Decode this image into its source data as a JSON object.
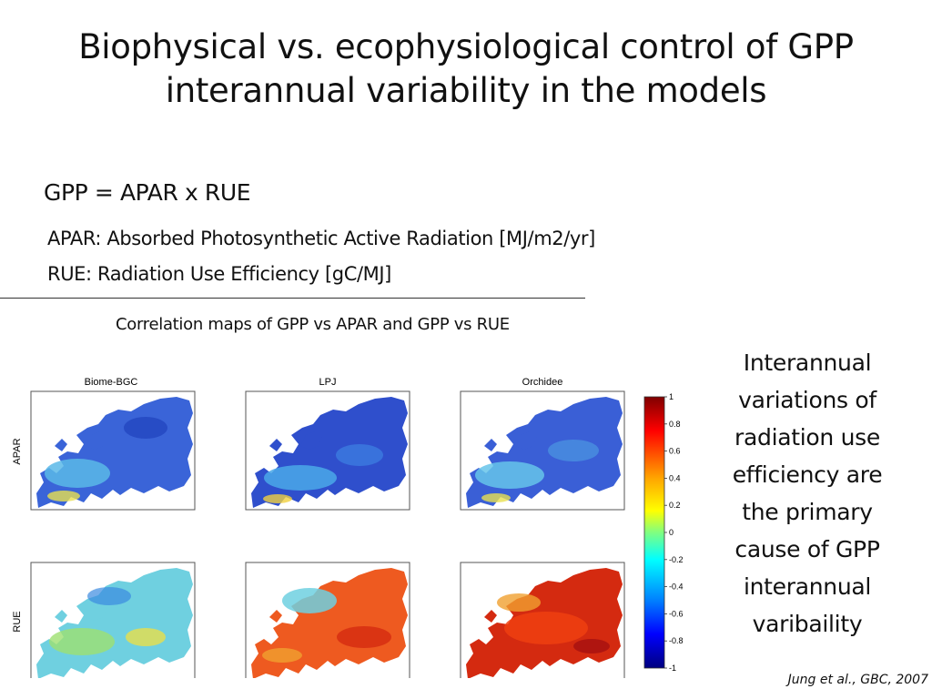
{
  "slide": {
    "title_line1": "Biophysical vs. ecophysiological control of GPP",
    "title_line2": "interannual variability in the models",
    "equation": "GPP = APAR x RUE",
    "apar_definition": "APAR: Absorbed Photosynthetic Active Radiation [MJ/m2/yr]",
    "rue_definition": "RUE: Radiation Use Efficiency [gC/MJ]",
    "caption": "Correlation maps of GPP vs APAR and GPP vs RUE",
    "conclusion": "Interannual variations of radiation use efficiency are the primary cause of GPP interannual varibaility",
    "citation": "Jung et al., GBC, 2007"
  },
  "figure": {
    "models": [
      "Biome-BGC",
      "LPJ",
      "Orchidee"
    ],
    "rows": [
      "APAR",
      "RUE"
    ],
    "colorbar": {
      "min": -1,
      "max": 1,
      "ticks": [
        "1",
        "0.8",
        "0.6",
        "0.4",
        "0.2",
        "0",
        "-0.2",
        "-0.4",
        "-0.6",
        "-0.8",
        "-1"
      ],
      "colors": [
        "#7f0000",
        "#ff0000",
        "#ffa500",
        "#ffff00",
        "#80ff80",
        "#00ffff",
        "#0080ff",
        "#0000ff",
        "#00007f"
      ]
    },
    "map_colors": {
      "land_apar": "#3a64d8",
      "land_apar_mixed": "#5ab8e8",
      "land_rue_biome": "#6fd0e0",
      "land_rue_warm": "#ee5a20",
      "land_rue_hot": "#d42a10",
      "sea": "#ffffff"
    }
  }
}
